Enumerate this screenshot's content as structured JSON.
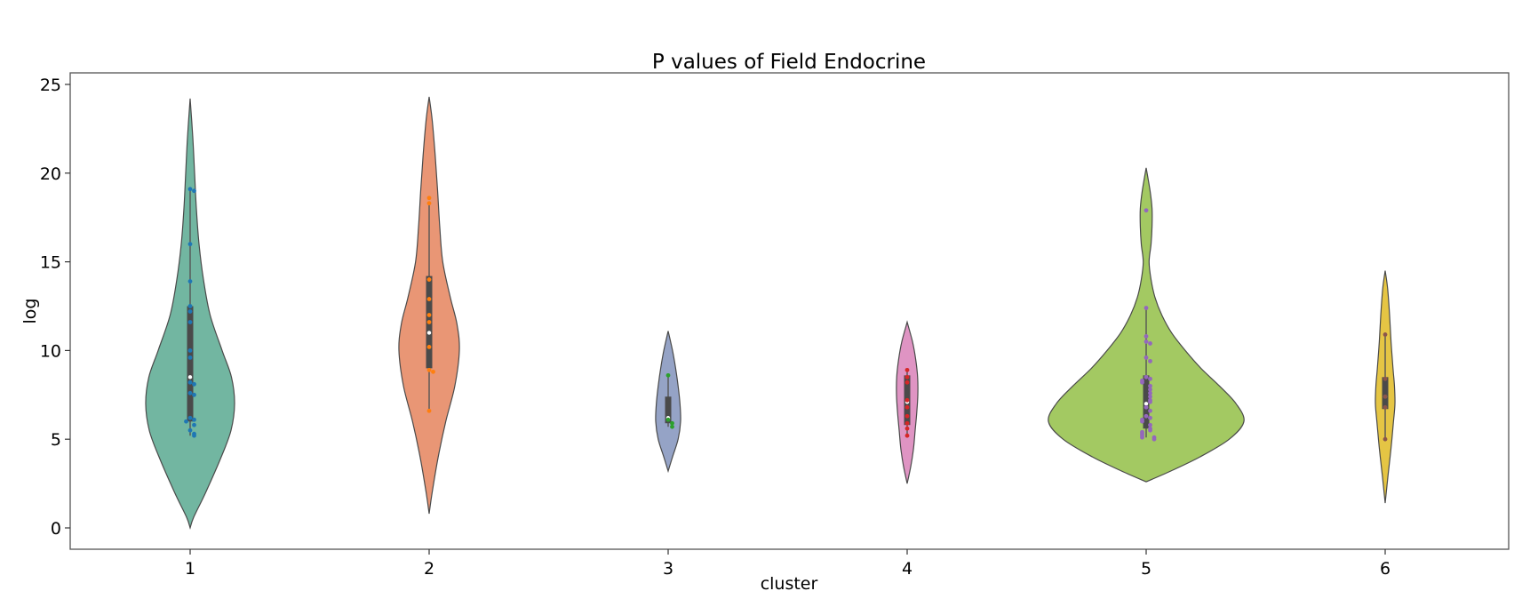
{
  "chart_data": {
    "type": "violin",
    "title": "P values of Field Endocrine",
    "xlabel": "cluster",
    "ylabel": "log",
    "categories": [
      "1",
      "2",
      "3",
      "4",
      "5",
      "6"
    ],
    "y_ticks": [
      0,
      5,
      10,
      15,
      20,
      25
    ],
    "ylim": [
      -1.2,
      25.6
    ],
    "grid": false,
    "legend": "none",
    "series": [
      {
        "category": "1",
        "violin_color": "#72b6a1",
        "point_color": "#1f77b4",
        "violin_range": [
          0,
          24.2
        ],
        "box": {
          "q1": 6.0,
          "median": 8.5,
          "q3": 12.5,
          "whisker_low": 5.2,
          "whisker_high": 19.0
        },
        "points": [
          19.1,
          19.0,
          16.0,
          13.9,
          12.5,
          12.2,
          11.6,
          10.0,
          9.6,
          8.2,
          8.1,
          7.6,
          7.5,
          6.2,
          6.1,
          6.0,
          5.8,
          5.5,
          5.3,
          5.2
        ]
      },
      {
        "category": "2",
        "violin_color": "#e99675",
        "point_color": "#ff7f0e",
        "violin_range": [
          0.8,
          24.3
        ],
        "box": {
          "q1": 9.0,
          "median": 11.0,
          "q3": 14.2,
          "whisker_low": 6.6,
          "whisker_high": 18.4
        },
        "points": [
          18.6,
          18.3,
          14.0,
          12.9,
          12.0,
          11.6,
          10.2,
          8.9,
          8.8,
          6.6
        ]
      },
      {
        "category": "3",
        "violin_color": "#95a3c6",
        "point_color": "#2ca02c",
        "violin_range": [
          3.2,
          11.1
        ],
        "box": {
          "q1": 5.9,
          "median": 6.2,
          "q3": 7.4,
          "whisker_low": 5.7,
          "whisker_high": 8.6
        },
        "points": [
          8.6,
          6.1,
          5.9,
          5.7
        ]
      },
      {
        "category": "4",
        "violin_color": "#df94c3",
        "point_color": "#d62728",
        "violin_range": [
          2.5,
          11.6
        ],
        "box": {
          "q1": 5.8,
          "median": 7.1,
          "q3": 8.6,
          "whisker_low": 5.2,
          "whisker_high": 8.9
        },
        "points": [
          8.9,
          8.5,
          8.2,
          7.2,
          6.8,
          6.3,
          5.9,
          5.6,
          5.2
        ]
      },
      {
        "category": "5",
        "violin_color": "#a3c962",
        "point_color": "#9467bd",
        "violin_range": [
          2.6,
          20.3
        ],
        "box": {
          "q1": 5.6,
          "median": 7.0,
          "q3": 8.6,
          "whisker_low": 5.1,
          "whisker_high": 12.4
        },
        "points": [
          17.9,
          12.4,
          10.8,
          10.5,
          10.4,
          9.6,
          9.4,
          8.5,
          8.4,
          8.3,
          8.2,
          8.0,
          7.8,
          7.6,
          7.4,
          7.2,
          7.1,
          6.8,
          6.6,
          6.3,
          6.2,
          6.1,
          6.0,
          5.8,
          5.6,
          5.5,
          5.4,
          5.3,
          5.2,
          5.1,
          5.1,
          5.0
        ]
      },
      {
        "category": "6",
        "violin_color": "#e5c544",
        "point_color": "#8c564b",
        "violin_range": [
          1.4,
          14.5
        ],
        "box": {
          "q1": 6.7,
          "median": 7.4,
          "q3": 8.5,
          "whisker_low": 5.0,
          "whisker_high": 10.9
        },
        "points": [
          10.9,
          8.4,
          7.4,
          6.8,
          5.0
        ]
      }
    ]
  }
}
